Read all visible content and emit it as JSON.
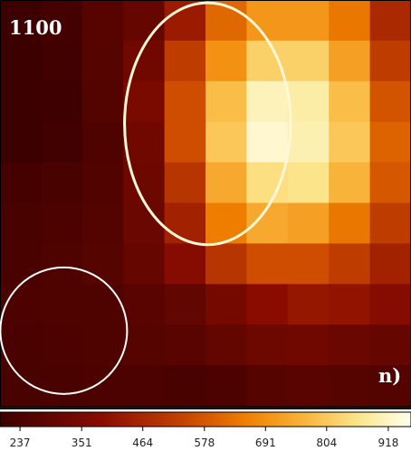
{
  "chart_data": {
    "type": "heatmap",
    "wavelength_label": "1100",
    "panel_label": "n)",
    "rows": 10,
    "cols": 10,
    "values": [
      [
        195,
        220,
        265,
        300,
        430,
        610,
        700,
        700,
        640,
        470
      ],
      [
        200,
        210,
        260,
        330,
        520,
        690,
        820,
        820,
        720,
        520
      ],
      [
        190,
        205,
        255,
        350,
        560,
        780,
        910,
        890,
        780,
        570
      ],
      [
        200,
        210,
        245,
        330,
        560,
        800,
        930,
        900,
        800,
        600
      ],
      [
        220,
        230,
        250,
        320,
        500,
        740,
        850,
        860,
        760,
        580
      ],
      [
        230,
        240,
        255,
        310,
        450,
        650,
        740,
        720,
        640,
        520
      ],
      [
        235,
        245,
        260,
        300,
        380,
        500,
        560,
        560,
        520,
        450
      ],
      [
        240,
        245,
        245,
        270,
        290,
        340,
        390,
        420,
        410,
        380
      ],
      [
        235,
        240,
        245,
        260,
        270,
        295,
        320,
        330,
        310,
        300
      ],
      [
        230,
        235,
        240,
        240,
        230,
        240,
        260,
        270,
        260,
        255
      ]
    ],
    "colorbar": {
      "min": 200,
      "max": 960,
      "ticks": [
        237,
        351,
        464,
        578,
        691,
        804,
        918
      ],
      "tick_labels": [
        "237",
        "351",
        "464",
        "578",
        "691",
        "804",
        "918"
      ]
    },
    "overlays": [
      {
        "type": "ellipse",
        "cx_cell": 5.05,
        "cy_cell": 3.05,
        "rx_cells": 2.02,
        "ry_cells": 2.98,
        "color": "#fff8d8"
      },
      {
        "type": "circle",
        "cx_cell": 1.55,
        "cy_cell": 8.15,
        "r_cells": 1.55,
        "color": "#ffffff"
      }
    ]
  }
}
